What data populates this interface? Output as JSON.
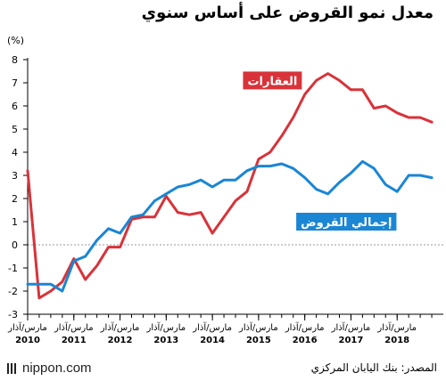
{
  "header": {
    "title": "معدل نمو القروض على أساس سنوي"
  },
  "footer": {
    "logo_text": "nippon.com",
    "source": "المصدر: بنك اليابان المركزي"
  },
  "colors": {
    "real_estate": "#d8333a",
    "total": "#1a86d4",
    "axis": "#000000",
    "grid": "#999999"
  },
  "chart_data": {
    "type": "line",
    "y_unit": "(%)",
    "ylim": [
      -3,
      8
    ],
    "y_ticks": [
      -3,
      -2,
      -1,
      0,
      1,
      2,
      3,
      4,
      5,
      6,
      7,
      8
    ],
    "grid": false,
    "x_range": [
      2010.0,
      2019.0
    ],
    "x_ticks": [
      {
        "x": 2010.0,
        "label": "مارس/آذار",
        "year": "2010"
      },
      {
        "x": 2011.0,
        "label": "مارس/آذار",
        "year": "2011"
      },
      {
        "x": 2012.0,
        "label": "مارس/آذار",
        "year": "2012"
      },
      {
        "x": 2013.0,
        "label": "مارس/آذار",
        "year": "2013"
      },
      {
        "x": 2014.0,
        "label": "مارس/آذار",
        "year": "2014"
      },
      {
        "x": 2015.0,
        "label": "مارس/آذار",
        "year": "2015"
      },
      {
        "x": 2016.0,
        "label": "مارس/آذار",
        "year": "2016"
      },
      {
        "x": 2017.0,
        "label": "مارس/آذار",
        "year": "2017"
      },
      {
        "x": 2018.0,
        "label": "مارس/آذار",
        "year": "2018"
      }
    ],
    "x": [
      2010.0,
      2010.25,
      2010.5,
      2010.75,
      2011.0,
      2011.25,
      2011.5,
      2011.75,
      2012.0,
      2012.25,
      2012.5,
      2012.75,
      2013.0,
      2013.25,
      2013.5,
      2013.75,
      2014.0,
      2014.25,
      2014.5,
      2014.75,
      2015.0,
      2015.25,
      2015.5,
      2015.75,
      2016.0,
      2016.25,
      2016.5,
      2016.75,
      2017.0,
      2017.25,
      2017.5,
      2017.75,
      2018.0,
      2018.25,
      2018.5,
      2018.75
    ],
    "series": [
      {
        "name": "العقارات",
        "color": "#d8333a",
        "values": [
          3.2,
          -2.3,
          -2.0,
          -1.6,
          -0.6,
          -1.5,
          -0.9,
          -0.1,
          -0.1,
          1.1,
          1.2,
          1.2,
          2.1,
          1.4,
          1.3,
          1.4,
          0.5,
          1.2,
          1.9,
          2.3,
          3.7,
          4.0,
          4.7,
          5.5,
          6.5,
          7.1,
          7.4,
          7.1,
          6.7,
          6.7,
          5.9,
          6.0,
          5.7,
          5.5,
          5.5,
          5.3
        ]
      },
      {
        "name": "إجمالي القروض",
        "color": "#1a86d4",
        "values": [
          -1.7,
          -1.7,
          -1.7,
          -2.0,
          -0.7,
          -0.5,
          0.2,
          0.7,
          0.5,
          1.2,
          1.3,
          1.9,
          2.2,
          2.5,
          2.6,
          2.8,
          2.5,
          2.8,
          2.8,
          3.2,
          3.4,
          3.4,
          3.5,
          3.3,
          2.9,
          2.4,
          2.2,
          2.7,
          3.1,
          3.6,
          3.3,
          2.6,
          2.3,
          3.0,
          3.0,
          2.9
        ]
      }
    ],
    "labels": [
      {
        "series": 0,
        "text": "العقارات",
        "anchor_x": 2015.3,
        "anchor_y": 7.1
      },
      {
        "series": 1,
        "text": "إجمالي القروض",
        "anchor_x": 2016.9,
        "anchor_y": 1.0
      }
    ]
  }
}
